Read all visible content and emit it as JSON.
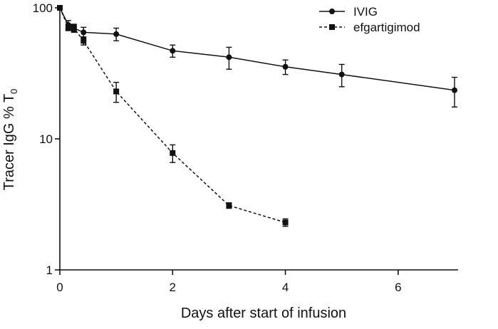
{
  "chart_data": {
    "type": "line",
    "title": "",
    "xlabel": "Days after start of infusion",
    "ylabel": "Tracer IgG % T",
    "ylabel_subscript": "0",
    "xlim": [
      0,
      7
    ],
    "ylim": [
      1,
      100
    ],
    "yscale": "log",
    "xticks": [
      0,
      2,
      4,
      6
    ],
    "xtick_labels": [
      "0",
      "2",
      "4",
      "6"
    ],
    "yticks": [
      1,
      10,
      100
    ],
    "ytick_labels": [
      "1",
      "10",
      "100"
    ],
    "grid": false,
    "legend_position": "top-right",
    "series": [
      {
        "name": "IVIG",
        "marker": "circle",
        "line_style": "solid",
        "color": "#111111",
        "x": [
          0,
          0.15,
          0.25,
          0.42,
          1,
          2,
          3,
          4,
          5,
          7
        ],
        "y": [
          100,
          74,
          70,
          65,
          63,
          47,
          42,
          35.5,
          31,
          23.5
        ],
        "err_low": [
          0,
          6,
          5,
          6,
          7,
          5,
          8,
          4.5,
          6,
          6
        ],
        "err_high": [
          0,
          6,
          5,
          6,
          7,
          5,
          8,
          4.5,
          6,
          6
        ]
      },
      {
        "name": "efgartigimod",
        "marker": "square",
        "line_style": "dashed",
        "color": "#111111",
        "x": [
          0,
          0.15,
          0.25,
          0.42,
          1,
          2,
          3,
          4
        ],
        "y": [
          100,
          71,
          70,
          56,
          23,
          7.8,
          3.1,
          2.3
        ],
        "err_low": [
          0,
          4,
          4,
          4,
          4,
          1.2,
          0.15,
          0.15
        ],
        "err_high": [
          0,
          4,
          4,
          4,
          4,
          1.2,
          0.15,
          0.15
        ]
      }
    ]
  }
}
